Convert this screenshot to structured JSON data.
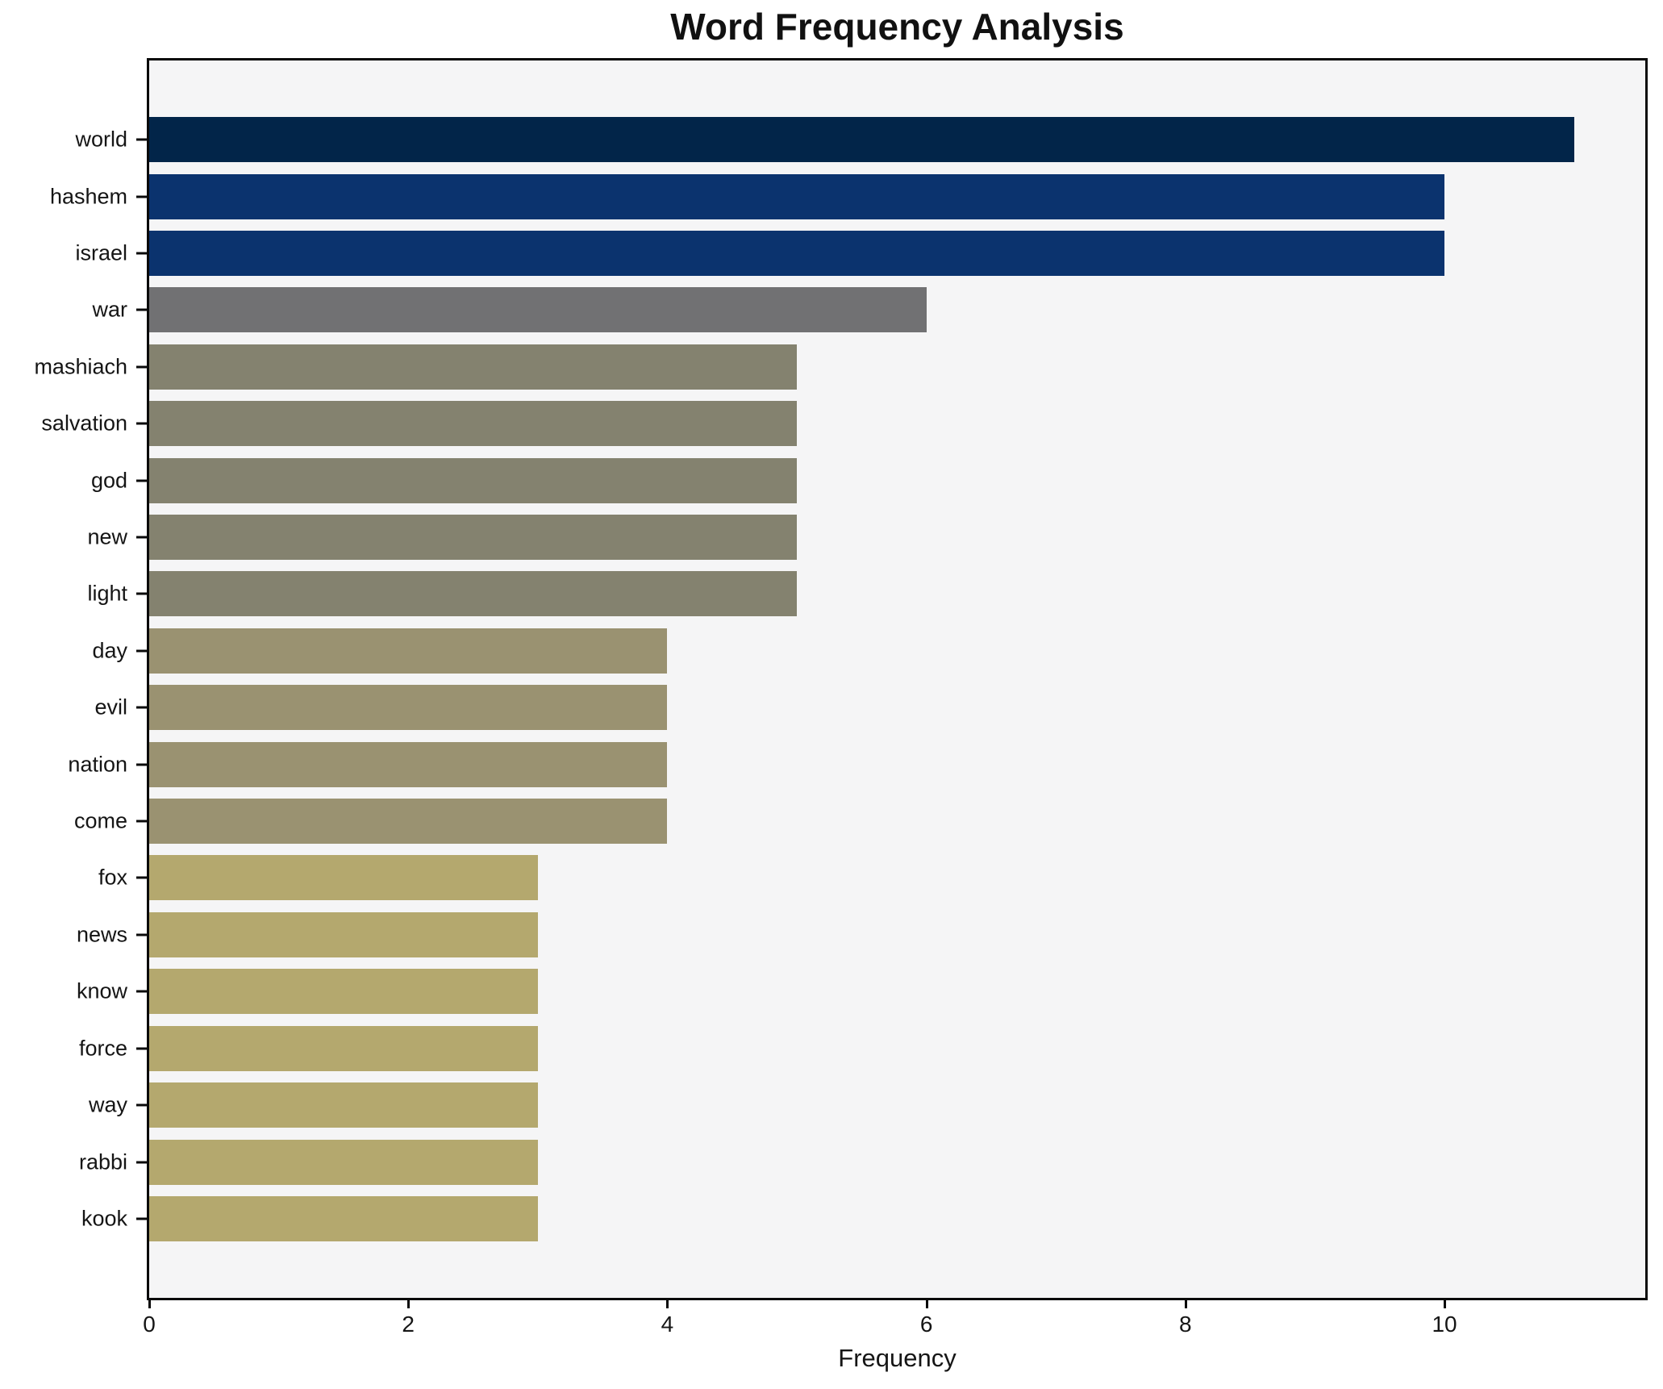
{
  "chart_data": {
    "type": "bar",
    "orientation": "horizontal",
    "title": "Word Frequency Analysis",
    "xlabel": "Frequency",
    "ylabel": "",
    "categories": [
      "world",
      "hashem",
      "israel",
      "war",
      "mashiach",
      "salvation",
      "god",
      "new",
      "light",
      "day",
      "evil",
      "nation",
      "come",
      "fox",
      "news",
      "know",
      "force",
      "way",
      "rabbi",
      "kook"
    ],
    "values": [
      11,
      10,
      10,
      6,
      5,
      5,
      5,
      5,
      5,
      4,
      4,
      4,
      4,
      3,
      3,
      3,
      3,
      3,
      3,
      3
    ],
    "bar_colors": [
      "#022549",
      "#0b336e",
      "#0b336e",
      "#717173",
      "#84826f",
      "#84826f",
      "#84826f",
      "#84826f",
      "#84826f",
      "#9a9271",
      "#9a9271",
      "#9a9271",
      "#9a9271",
      "#b4a86e",
      "#b4a86e",
      "#b4a86e",
      "#b4a86e",
      "#b4a86e",
      "#b4a86e",
      "#b4a86e"
    ],
    "x_ticks": [
      0,
      2,
      4,
      6,
      8,
      10
    ],
    "xlim": [
      0,
      11.55
    ],
    "grid": false,
    "legend": null,
    "plot_bg": "#f5f5f6",
    "fig_bg": "#ffffff",
    "spine_color": "#0a0a0a",
    "text_color": "#151515"
  }
}
